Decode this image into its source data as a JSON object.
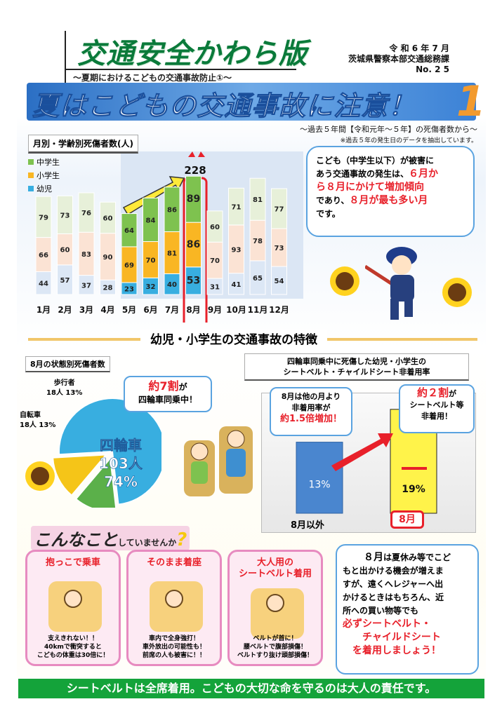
{
  "header": {
    "title": "交通安全かわら版",
    "subtitle": "～夏期におけるこどもの交通事故防止①～",
    "date": "令 和 6 年 7 月",
    "dept": "茨城県警察本部交通総務課",
    "issue": "No. 2 5"
  },
  "banner": {
    "text": "夏はこどもの交通事故に注意！",
    "num": "1"
  },
  "notes": {
    "period": "～過去５年間【令和元年～５年】の死傷者数から～",
    "data_note": "※過去５年の発生日のデータを抽出しています。"
  },
  "chart1": {
    "title": "月別・学齢別死傷者数(人)",
    "total_label": "228"
  },
  "chart_data": [
    {
      "type": "bar",
      "title": "月別・学齢別死傷者数(人)",
      "categories": [
        "1月",
        "2月",
        "3月",
        "4月",
        "5月",
        "6月",
        "7月",
        "8月",
        "9月",
        "10月",
        "11月",
        "12月"
      ],
      "series": [
        {
          "name": "幼児",
          "values": [
            44,
            57,
            37,
            28,
            23,
            32,
            40,
            53,
            31,
            41,
            65,
            54
          ]
        },
        {
          "name": "小学生",
          "values": [
            66,
            60,
            83,
            90,
            69,
            70,
            81,
            86,
            70,
            93,
            78,
            73
          ]
        },
        {
          "name": "中学生",
          "values": [
            79,
            73,
            76,
            60,
            64,
            84,
            86,
            89,
            60,
            71,
            81,
            77
          ]
        }
      ],
      "annotations": [
        "228"
      ]
    },
    {
      "type": "pie",
      "title": "8月の状態別死傷者数",
      "slices": [
        {
          "label": "四輪車",
          "value": 103,
          "pct": "74%"
        },
        {
          "label": "自転車",
          "value": 18,
          "pct": "13%"
        },
        {
          "label": "歩行者",
          "value": 18,
          "pct": "13%"
        }
      ]
    },
    {
      "type": "bar",
      "title": "四輪車同乗中に死傷した幼児・小学生のシートベルト・チャイルドシート非着用率",
      "categories": [
        "8月以外",
        "8月"
      ],
      "values": [
        13,
        19
      ],
      "labels": [
        "13%",
        "19%"
      ]
    }
  ],
  "speech1": {
    "l1": "こども（中学生以下）が被害に",
    "l2": "あう交通事故の発生は、",
    "l3": "６月か",
    "l4": "ら８月にかけて増加傾向",
    "l5": "であり、",
    "l6": "８月が最も多い月",
    "l7": "です。"
  },
  "section": {
    "title": "幼児・小学生の交通事故の特徴"
  },
  "pie": {
    "title": "8月の状態別死傷者数",
    "ped": "歩行者",
    "ped_v": "18人 13%",
    "bike": "自転車",
    "bike_v": "18人 13%",
    "car": "四輪車",
    "car_n": "103人",
    "car_p": "74%"
  },
  "speech2": {
    "a": "約7割",
    "b": "が",
    "c": "四輪車同乗中！"
  },
  "bar2": {
    "t1": "四輪車同乗中に死傷した幼児・小学生の",
    "t2": "シートベルト・チャイルドシート非着用率",
    "s3a": "8月は他の月より",
    "s3b": "非着用率が",
    "s3c": "約1.5倍増加！",
    "s4a": "約２割",
    "s4b": "が",
    "s4c": "シートベルト等",
    "s4d": "非着用！",
    "l1": "8月以外",
    "l2": "8月",
    "v1": "13%",
    "v2": "19%"
  },
  "konna": {
    "a": "こんなこと",
    "b": "していませんか",
    "q": "?"
  },
  "cards": [
    {
      "title": "抱っこで乗車",
      "b1": "支えきれない！！",
      "b2": "40kmで衝突すると",
      "b3": "こどもの体重は30倍に！"
    },
    {
      "title": "そのまま着座",
      "b1": "車内で全身強打！",
      "b2": "車外放出の可能性も！",
      "b3": "前席の人も被害に！！"
    },
    {
      "title": "大人用の",
      "title2": "シートベルト着用",
      "b1": "ベルトが首に！",
      "b2": "腰ベルトで腹部損傷！",
      "b3": "ベルトすり抜け頭部損傷！"
    }
  ],
  "rightbox": {
    "a": "８月",
    "b": "は夏休み等でこど",
    "c": "もと出かける機会が増えま",
    "d": "すが、遠くへレジャーへ出",
    "e": "かけるときはもちろん、近",
    "f": "所への買い物等でも",
    "g": "必ずシートベルト・",
    "h": "チャイルドシート",
    "i": "を着用しましょう！"
  },
  "footer": {
    "text": "シートベルトは全席着用。こどもの大切な命を守るのは大人の責任です。"
  },
  "colors": {
    "elem": "#38aee0",
    "kinder": "#f9b623",
    "junior": "#7ec24f",
    "accent": "#e8202a"
  }
}
